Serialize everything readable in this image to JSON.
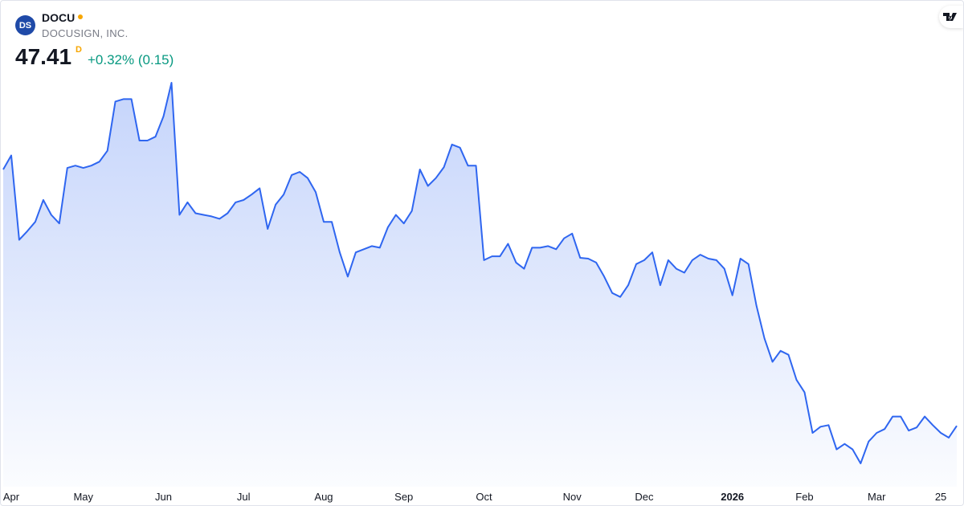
{
  "header": {
    "logo_text": "DS",
    "symbol": "DOCU",
    "company": "DOCUSIGN, INC.",
    "price": "47.41",
    "price_suffix": "D",
    "change": "+0.32% (0.15)"
  },
  "chart_data": {
    "type": "line",
    "color": "#2f66f0",
    "categories": [
      null,
      "Apr",
      null,
      null,
      null,
      null,
      null,
      null,
      null,
      null,
      "May",
      null,
      null,
      null,
      null,
      null,
      null,
      null,
      null,
      null,
      "Jun",
      null,
      null,
      null,
      null,
      null,
      null,
      null,
      null,
      null,
      "Jul",
      null,
      null,
      null,
      null,
      null,
      null,
      null,
      null,
      null,
      "Aug",
      null,
      null,
      null,
      null,
      null,
      null,
      null,
      null,
      null,
      "Sep",
      null,
      null,
      null,
      null,
      null,
      null,
      null,
      null,
      null,
      "Oct",
      null,
      null,
      null,
      null,
      null,
      null,
      null,
      null,
      null,
      null,
      "Nov",
      null,
      null,
      null,
      null,
      null,
      null,
      null,
      null,
      "Dec",
      null,
      null,
      null,
      null,
      null,
      null,
      null,
      null,
      null,
      null,
      "2026",
      null,
      null,
      null,
      null,
      null,
      null,
      null,
      null,
      "Feb",
      null,
      null,
      null,
      null,
      null,
      null,
      null,
      null,
      "Mar",
      null,
      null,
      null,
      null,
      null,
      null,
      null,
      "25",
      null,
      null
    ],
    "values": [
      80.2,
      82.0,
      71.2,
      72.3,
      73.5,
      76.3,
      74.4,
      73.3,
      80.4,
      80.7,
      80.4,
      80.7,
      81.2,
      82.6,
      88.9,
      89.2,
      89.2,
      83.9,
      83.9,
      84.4,
      87.0,
      91.3,
      74.4,
      76.0,
      74.6,
      74.4,
      74.2,
      73.9,
      74.6,
      76.0,
      76.3,
      77.0,
      77.8,
      72.6,
      75.7,
      77.0,
      79.5,
      79.9,
      79.1,
      77.3,
      73.5,
      73.5,
      69.6,
      66.5,
      69.6,
      70.0,
      70.4,
      70.2,
      72.8,
      74.4,
      73.3,
      74.9,
      80.2,
      78.1,
      79.1,
      80.5,
      83.4,
      83.0,
      80.7,
      80.7,
      68.6,
      69.1,
      69.1,
      70.7,
      68.3,
      67.5,
      70.2,
      70.2,
      70.4,
      70.0,
      71.4,
      72.0,
      68.9,
      68.8,
      68.3,
      66.5,
      64.4,
      63.9,
      65.4,
      68.1,
      68.6,
      69.6,
      65.4,
      68.6,
      67.5,
      67.0,
      68.6,
      69.3,
      68.8,
      68.6,
      67.5,
      64.1,
      68.8,
      68.1,
      62.8,
      58.6,
      55.6,
      57.0,
      56.5,
      53.3,
      51.7,
      46.5,
      47.3,
      47.5,
      44.4,
      45.1,
      44.4,
      42.6,
      45.4,
      46.5,
      47.0,
      48.6,
      48.6,
      46.8,
      47.2,
      48.6,
      47.5,
      46.5,
      45.9,
      47.41
    ]
  }
}
